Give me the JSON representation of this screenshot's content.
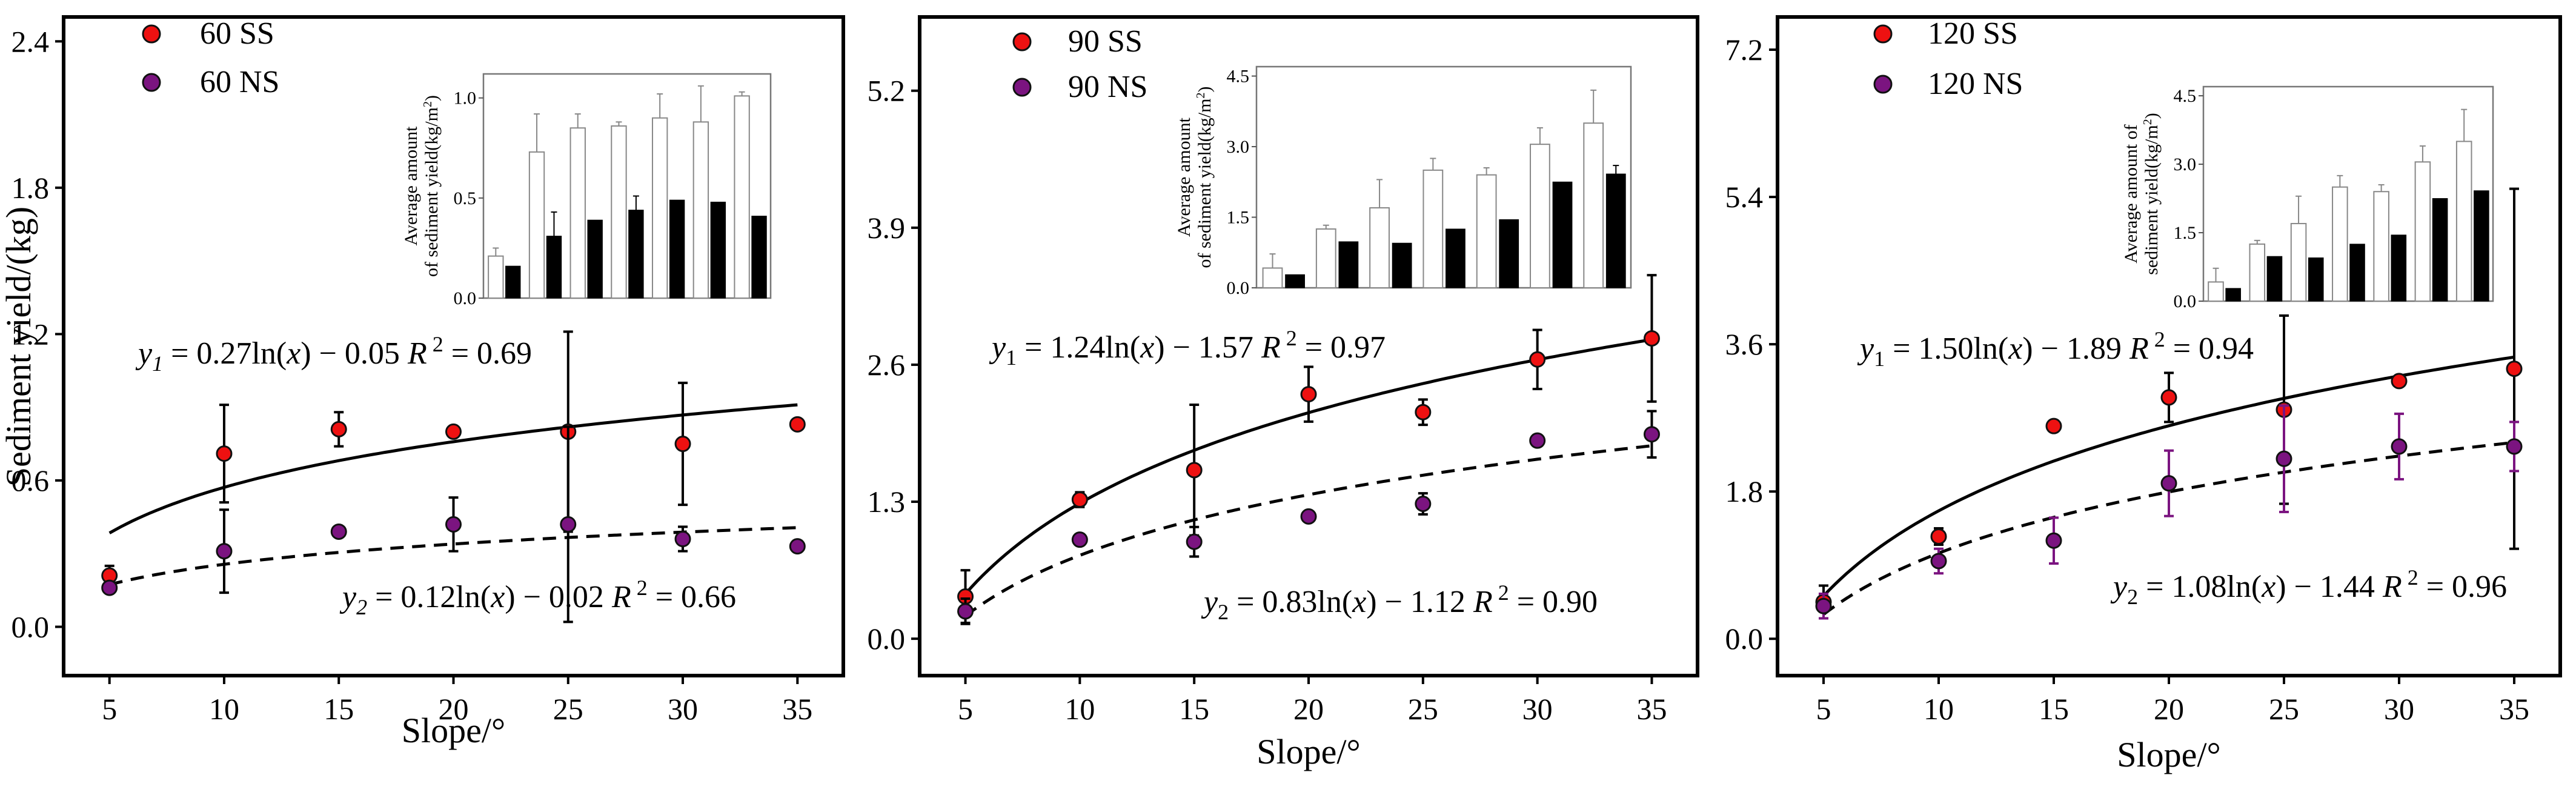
{
  "colors": {
    "ss": "#ee1111",
    "ns": "#7b1480",
    "ns_dark": "#5a1a6b",
    "axis": "#000000"
  },
  "chart_data": [
    {
      "type": "scatter",
      "id": "p60",
      "ylabel": "Sediment yield/(kg)",
      "xlabel": "Slope/°",
      "xlim": [
        3,
        37
      ],
      "ylim": [
        -0.2,
        2.5
      ],
      "xticks": [
        "5",
        "10",
        "15",
        "20",
        "25",
        "30",
        "35"
      ],
      "yticks": [
        "0.0",
        "0.6",
        "1.2",
        "1.8",
        "2.4"
      ],
      "legend": [
        "60 SS",
        "60 NS"
      ],
      "ns_error_color": "#000000",
      "x": [
        5,
        10,
        15,
        20,
        25,
        30,
        35
      ],
      "series": [
        {
          "name": "60 SS",
          "values": [
            0.21,
            0.71,
            0.81,
            0.8,
            0.8,
            0.75,
            0.83
          ],
          "err": [
            0.04,
            0.2,
            0.07,
            0.02,
            0.41,
            0.25,
            0.02
          ]
        },
        {
          "name": "60 NS",
          "values": [
            0.16,
            0.31,
            0.39,
            0.42,
            0.42,
            0.36,
            0.33
          ],
          "err": [
            0.02,
            0.17,
            0.02,
            0.11,
            0.4,
            0.05,
            0.01
          ]
        }
      ],
      "fits": {
        "ss": {
          "a": 0.27,
          "b": -0.05
        },
        "ns": {
          "a": 0.12,
          "b": -0.02
        }
      },
      "eq1": {
        "y": "y",
        "sub": "1",
        "rest": " = 0.27ln(",
        "x": "x",
        "tail": ") − 0.05  ",
        "r": "R",
        "sup": "2",
        "val": " = 0.69"
      },
      "eq2": {
        "y": "y",
        "sub": "2",
        "rest": " = 0.12ln(",
        "x": "x",
        "tail": ") − 0.02  ",
        "r": "R",
        "sup": "2",
        "val": " = 0.66"
      },
      "inset": {
        "ylabel1": "Average amount",
        "ylabel2": "of sediment yield(kg/m",
        "ylabel_sup": "2",
        "ylabel_tail": ")",
        "ylim": [
          0,
          1.12
        ],
        "yticks": [
          "0.0",
          "0.5",
          "1.0"
        ],
        "ytick_values": [
          0,
          0.5,
          1.0
        ],
        "open": [
          0.21,
          0.73,
          0.85,
          0.86,
          0.9,
          0.88,
          1.01
        ],
        "open_err": [
          0.04,
          0.19,
          0.07,
          0.02,
          0.12,
          0.18,
          0.02
        ],
        "filled": [
          0.16,
          0.31,
          0.39,
          0.44,
          0.49,
          0.48,
          0.41
        ],
        "filled_err": [
          0.0,
          0.12,
          0.0,
          0.07,
          0.0,
          0.0,
          0.0
        ]
      }
    },
    {
      "type": "scatter",
      "id": "p90",
      "ylabel": "",
      "xlabel": "Slope/°",
      "xlim": [
        3,
        37
      ],
      "ylim": [
        -0.35,
        5.9
      ],
      "xticks": [
        "5",
        "10",
        "15",
        "20",
        "25",
        "30",
        "35"
      ],
      "yticks": [
        "0.0",
        "1.3",
        "2.6",
        "3.9",
        "5.2"
      ],
      "legend": [
        "90 SS",
        "90 NS"
      ],
      "ns_error_color": "#000000",
      "x": [
        5,
        10,
        15,
        20,
        25,
        30,
        35
      ],
      "series": [
        {
          "name": "90 SS",
          "values": [
            0.4,
            1.32,
            1.6,
            2.32,
            2.15,
            2.65,
            2.85
          ],
          "err": [
            0.25,
            0.07,
            0.62,
            0.26,
            0.12,
            0.28,
            0.6
          ]
        },
        {
          "name": "90 NS",
          "values": [
            0.26,
            0.94,
            0.92,
            1.16,
            1.28,
            1.88,
            1.94
          ],
          "err": [
            0.12,
            0.03,
            0.14,
            0.02,
            0.1,
            0.04,
            0.22
          ]
        }
      ],
      "fits": {
        "ss": {
          "a": 1.24,
          "b": -1.57
        },
        "ns": {
          "a": 0.83,
          "b": -1.12
        }
      },
      "eq1": {
        "y": "y",
        "sub": "1",
        "rest": " = 1.24ln(",
        "x": "x",
        "tail": ") − 1.57  ",
        "r": "R",
        "sup": "2",
        "val": " = 0.97"
      },
      "eq2": {
        "y": "y",
        "sub": "2",
        "rest": " = 0.83ln(",
        "x": "x",
        "tail": ") − 1.12  ",
        "r": "R",
        "sup": "2",
        "val": " = 0.90"
      },
      "inset": {
        "ylabel1": "Average amount",
        "ylabel2": "of sediment yield(kg/m",
        "ylabel_sup": "2",
        "ylabel_tail": ")",
        "ylim": [
          0,
          4.7
        ],
        "yticks": [
          "0.0",
          "1.5",
          "3.0",
          "4.5"
        ],
        "ytick_values": [
          0,
          1.5,
          3.0,
          4.5
        ],
        "open": [
          0.42,
          1.25,
          1.7,
          2.5,
          2.4,
          3.05,
          3.5
        ],
        "open_err": [
          0.3,
          0.08,
          0.6,
          0.25,
          0.15,
          0.35,
          0.7
        ],
        "filled": [
          0.28,
          0.98,
          0.95,
          1.25,
          1.45,
          2.25,
          2.42
        ],
        "filled_err": [
          0.0,
          0.0,
          0.0,
          0.0,
          0.0,
          0.0,
          0.18
        ]
      }
    },
    {
      "type": "scatter",
      "id": "p120",
      "ylabel": "",
      "xlabel": "Slope/°",
      "xlim": [
        3,
        37
      ],
      "ylim": [
        -0.45,
        7.6
      ],
      "xticks": [
        "5",
        "10",
        "15",
        "20",
        "25",
        "30",
        "35"
      ],
      "yticks": [
        "0.0",
        "1.8",
        "3.6",
        "5.4",
        "7.2"
      ],
      "legend": [
        "120 SS",
        "120 NS"
      ],
      "ns_error_color": "#7b1480",
      "x": [
        5,
        10,
        15,
        20,
        25,
        30,
        35
      ],
      "series": [
        {
          "name": "120 SS",
          "values": [
            0.45,
            1.25,
            2.6,
            2.95,
            2.8,
            3.15,
            3.3
          ],
          "err": [
            0.2,
            0.1,
            0.06,
            0.3,
            1.15,
            0.05,
            2.2
          ]
        },
        {
          "name": "120 NS",
          "values": [
            0.4,
            0.95,
            1.2,
            1.9,
            2.2,
            2.35,
            2.35
          ],
          "err": [
            0.15,
            0.15,
            0.28,
            0.4,
            0.65,
            0.4,
            0.3
          ]
        }
      ],
      "fits": {
        "ss": {
          "a": 1.5,
          "b": -1.89
        },
        "ns": {
          "a": 1.08,
          "b": -1.44
        }
      },
      "eq1": {
        "y": "y",
        "sub": "1",
        "rest": " = 1.50ln(",
        "x": "x",
        "tail": ") − 1.89 ",
        "r": "R",
        "sup": "2",
        "val": " = 0.94"
      },
      "eq2": {
        "y": "y",
        "sub": "2",
        "rest": " = 1.08ln(",
        "x": "x",
        "tail": ") − 1.44  ",
        "r": "R",
        "sup": "2",
        "val": " = 0.96"
      },
      "inset": {
        "ylabel1": "Average amount of",
        "ylabel2": "sediment yield(kg/m",
        "ylabel_sup": "2",
        "ylabel_tail": ")",
        "ylim": [
          0,
          4.7
        ],
        "yticks": [
          "0.0",
          "1.5",
          "3.0",
          "4.5"
        ],
        "ytick_values": [
          0,
          1.5,
          3.0,
          4.5
        ],
        "open": [
          0.42,
          1.25,
          1.7,
          2.5,
          2.4,
          3.05,
          3.5
        ],
        "open_err": [
          0.3,
          0.08,
          0.6,
          0.25,
          0.15,
          0.35,
          0.7
        ],
        "filled": [
          0.28,
          0.98,
          0.95,
          1.25,
          1.45,
          2.25,
          2.42
        ],
        "filled_err": [
          0.0,
          0.0,
          0.0,
          0.0,
          0.0,
          0.0,
          0.0
        ]
      }
    }
  ]
}
